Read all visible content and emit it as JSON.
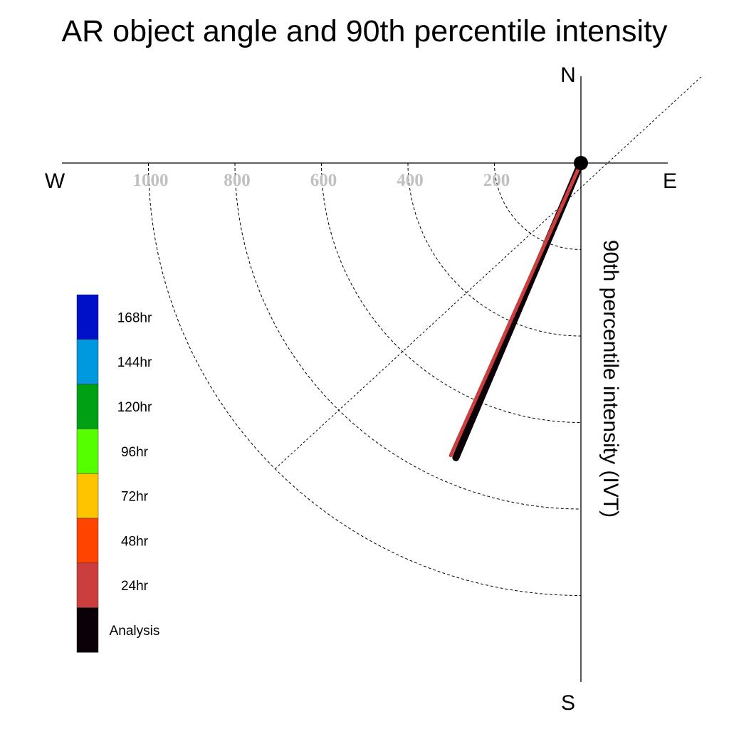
{
  "chart_data": {
    "type": "polar-vector",
    "title": "AR object angle and 90th percentile intensity",
    "ylabel": "90th percentile intensity (IVT)",
    "compass": {
      "north": "N",
      "south": "S",
      "east": "E",
      "west": "W"
    },
    "radial_ticks": [
      1000,
      800,
      600,
      400,
      200
    ],
    "radial_tick_labels": [
      "1000",
      "800",
      "600",
      "400",
      "200"
    ],
    "radial_max": 1000,
    "grid": true,
    "legend_position": "left",
    "legend": [
      {
        "label": "168hr",
        "color": "#0010c8"
      },
      {
        "label": "144hr",
        "color": "#0099e0"
      },
      {
        "label": "120hr",
        "color": "#00a014"
      },
      {
        "label": "96hr",
        "color": "#55ff00"
      },
      {
        "label": "72hr",
        "color": "#ffc400"
      },
      {
        "label": "48hr",
        "color": "#ff4400"
      },
      {
        "label": "24hr",
        "color": "#cc3d3d"
      },
      {
        "label": "Analysis",
        "color": "#0c0008"
      }
    ],
    "series": [
      {
        "name": "24hr",
        "angle_deg": 204,
        "intensity": 740,
        "color": "#cc3d3d"
      },
      {
        "name": "Analysis",
        "angle_deg": 203,
        "intensity": 740,
        "color": "#0c0008"
      }
    ]
  }
}
